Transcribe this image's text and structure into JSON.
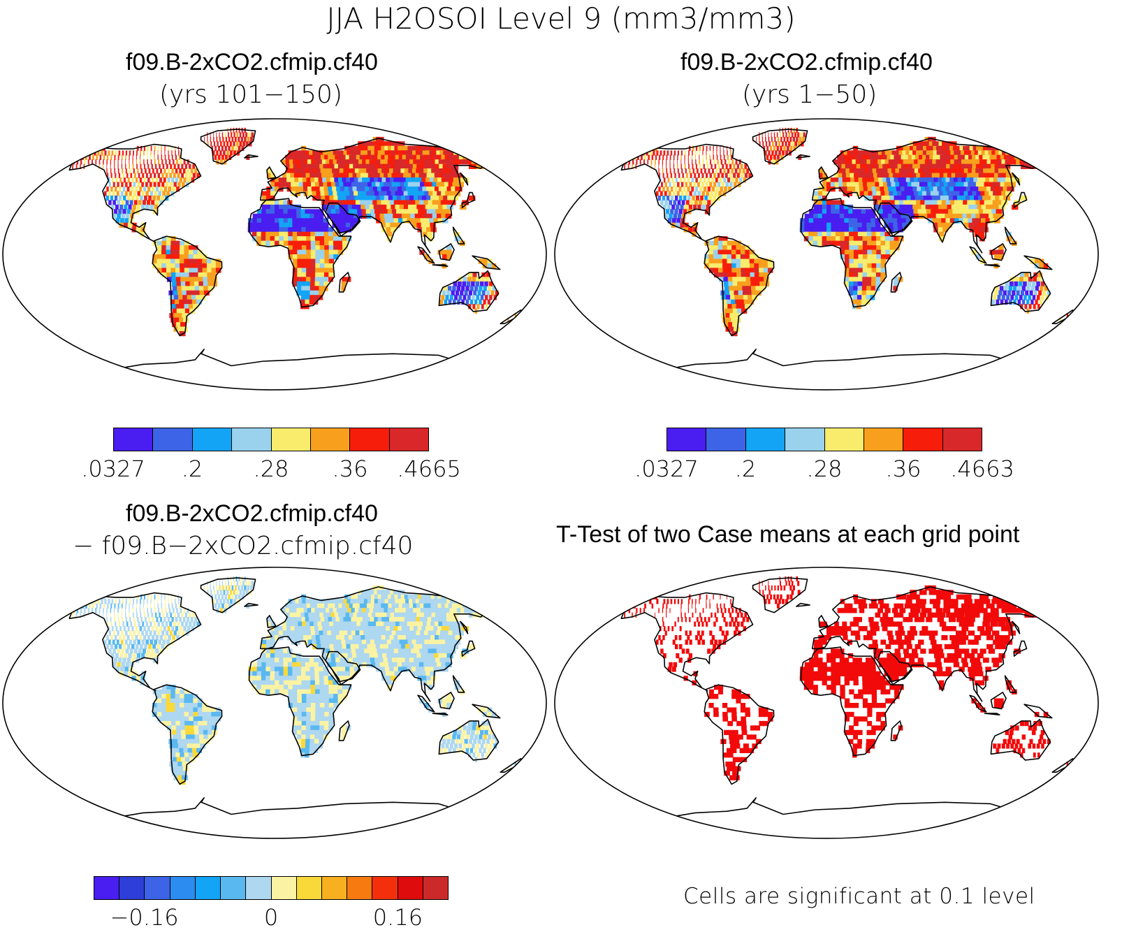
{
  "figure": {
    "title": "JJA H2OSOI Level 9 (mm3/mm3)"
  },
  "panels": [
    {
      "id": "case1",
      "title": "f09.B-2xCO2.cfmip.cf40",
      "subtitle": "(yrs 101−150)",
      "colorbar": {
        "colors": [
          "#4a1df0",
          "#3d64e6",
          "#13a4f6",
          "#9ad2ee",
          "#f9ec6c",
          "#f8a01e",
          "#f61e0b",
          "#d8282a"
        ],
        "tick_labels": [
          ".0327",
          ".2",
          ".28",
          ".36",
          ".4665"
        ]
      }
    },
    {
      "id": "case2",
      "title": "f09.B-2xCO2.cfmip.cf40",
      "subtitle": "(yrs 1−50)",
      "colorbar": {
        "colors": [
          "#4a1df0",
          "#3d64e6",
          "#13a4f6",
          "#9ad2ee",
          "#f9ec6c",
          "#f8a01e",
          "#f61e0b",
          "#d8282a"
        ],
        "tick_labels": [
          ".0327",
          ".2",
          ".28",
          ".36",
          ".4663"
        ]
      }
    },
    {
      "id": "difference",
      "title": "f09.B-2xCO2.cfmip.cf40",
      "subtitle": "− f09.B−2xCO2.cfmip.cf40",
      "colorbar": {
        "colors": [
          "#4a1df0",
          "#2e3ed8",
          "#3d64e6",
          "#2d8cf0",
          "#13a4f6",
          "#5ab8f0",
          "#aed7f0",
          "#fbf3a4",
          "#f9d93a",
          "#f8b020",
          "#f67a10",
          "#f4300c",
          "#de0c0c",
          "#cc2a2a"
        ],
        "tick_labels": [
          "−0.16",
          "0",
          "0.16"
        ]
      }
    },
    {
      "id": "ttest",
      "title": "T-Test of two Case means at each grid point",
      "note": "Cells are significant at 0.1 level",
      "significance_color": "#f20a0a"
    }
  ]
}
